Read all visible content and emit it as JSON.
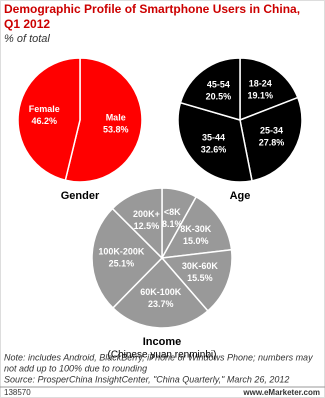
{
  "title": [
    "Demographic Profile of Smartphone Users in China,",
    "Q1 2012"
  ],
  "subtitle": "% of total",
  "notes": [
    "Note: includes Android, BlackBerry, iPhone or Windows Phone; numbers may",
    "not add up to 100% due to rounding",
    "Source: ProsperChina InsightCenter, \"China Quarterly,\" March 26, 2012"
  ],
  "footer_id": "138570",
  "footer_brand": "www.eMarketer.com",
  "chart_data": [
    {
      "type": "pie",
      "title": "Gender",
      "color": "#ff0000",
      "categories": [
        "Male",
        "Female"
      ],
      "values": [
        53.8,
        46.2
      ],
      "value_labels": [
        "53.8%",
        "46.2%"
      ]
    },
    {
      "type": "pie",
      "title": "Age",
      "color": "#000000",
      "categories": [
        "18-24",
        "25-34",
        "35-44",
        "45-54"
      ],
      "values": [
        19.1,
        27.8,
        32.6,
        20.5
      ],
      "value_labels": [
        "19.1%",
        "27.8%",
        "32.6%",
        "20.5%"
      ]
    },
    {
      "type": "pie",
      "title": "Income",
      "subtitle": "(Chinese yuan renminbi)",
      "color": "#999999",
      "categories": [
        "<8K",
        "8K-30K",
        "30K-60K",
        "60K-100K",
        "100K-200K",
        "200K+"
      ],
      "values": [
        8.1,
        15.0,
        15.5,
        23.7,
        25.1,
        12.5
      ],
      "value_labels": [
        "8.1%",
        "15.0%",
        "15.5%",
        "23.7%",
        "25.1%",
        "12.5%"
      ]
    }
  ]
}
